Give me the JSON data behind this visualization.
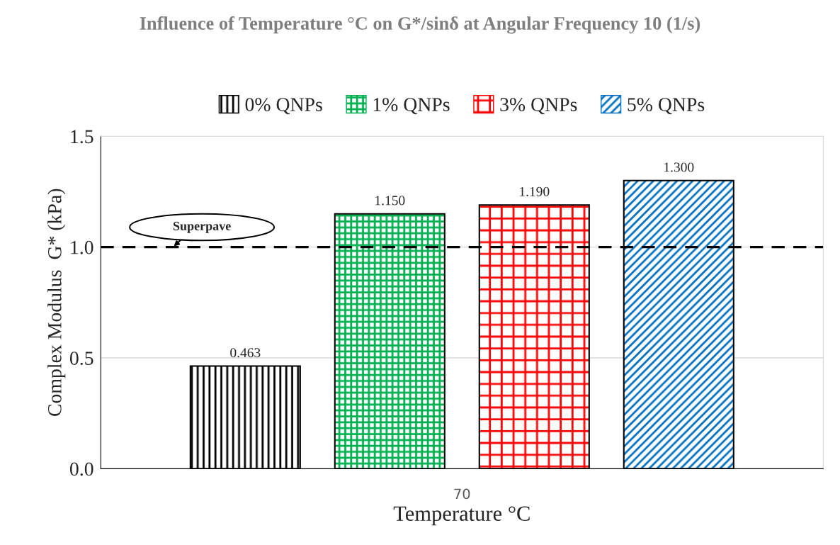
{
  "chart_data": {
    "type": "bar",
    "title": "Influence of Temperature °C on G*/sinδ at Angular Frequency 10 (1/s)",
    "xlabel": "Temperature °C",
    "ylabel": "Complex Modulus  G* (kPa)",
    "categories": [
      "70"
    ],
    "series": [
      {
        "name": "0% QNPs",
        "color": "#000000",
        "values": [
          0.463
        ],
        "value_labels": [
          "0.463"
        ]
      },
      {
        "name": "1% QNPs",
        "color": "#00b050",
        "values": [
          1.15
        ],
        "value_labels": [
          "1.150"
        ]
      },
      {
        "name": "3% QNPs",
        "color": "#ff0000",
        "values": [
          1.19
        ],
        "value_labels": [
          "1.190"
        ]
      },
      {
        "name": "5% QNPs",
        "color": "#0070c0",
        "values": [
          1.3
        ],
        "value_labels": [
          "1.300"
        ]
      }
    ],
    "ylim": [
      0,
      1.5
    ],
    "yticks": [
      {
        "value": 0,
        "label": "0.0"
      },
      {
        "value": 0.5,
        "label": "0.5"
      },
      {
        "value": 1,
        "label": "1.0"
      },
      {
        "value": 1.5,
        "label": "1.5"
      }
    ],
    "ref_lines": [
      {
        "axis": "y",
        "value": 1,
        "label": "Superpave",
        "color": "#000000",
        "line_style": "dashed"
      }
    ],
    "grid": "y",
    "legend": "top"
  }
}
